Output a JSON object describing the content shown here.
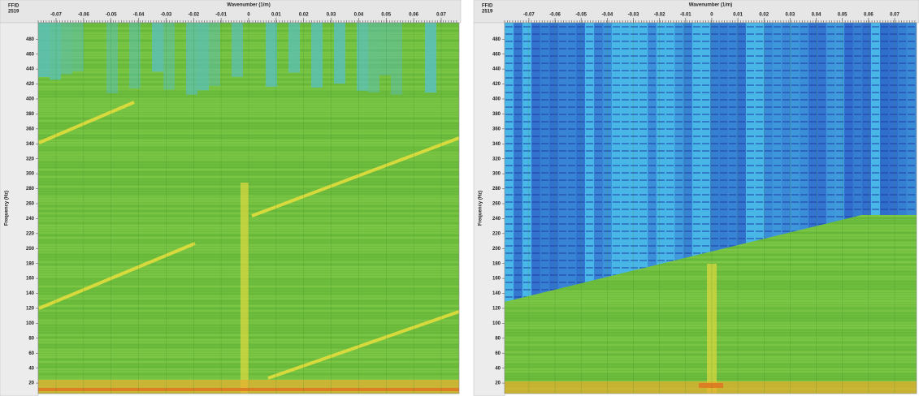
{
  "chart_data": [
    {
      "type": "heatmap",
      "header_label": "FFID",
      "header_value": 2519,
      "title": "Wavenumber (1/m)",
      "y_label": "Frequency (Hz)",
      "xlim": [
        -0.0765,
        0.0765
      ],
      "xticks": [
        -0.07,
        -0.06,
        -0.05,
        -0.04,
        -0.03,
        -0.02,
        -0.01,
        0,
        0.01,
        0.02,
        0.03,
        0.04,
        0.05,
        0.06,
        0.07
      ],
      "ylim": [
        6,
        502
      ],
      "yticks": [
        20,
        40,
        60,
        80,
        100,
        120,
        140,
        160,
        180,
        200,
        220,
        240,
        260,
        280,
        300,
        320,
        340,
        360,
        380,
        400,
        420,
        440,
        460,
        480
      ]
    },
    {
      "type": "heatmap",
      "header_label": "FFID",
      "header_value": 2519,
      "title": "Wavenumber (1/m)",
      "y_label": "Frequency (Hz)",
      "xlim": [
        -0.0793,
        0.0784
      ],
      "xticks": [
        -0.07,
        -0.06,
        -0.05,
        -0.04,
        -0.03,
        -0.02,
        -0.01,
        0,
        0.01,
        0.02,
        0.03,
        0.04,
        0.05,
        0.06,
        0.07
      ],
      "ylim": [
        6,
        502
      ],
      "yticks": [
        20,
        40,
        60,
        80,
        100,
        120,
        140,
        160,
        180,
        200,
        220,
        240,
        260,
        280,
        300,
        320,
        340,
        360,
        380,
        400,
        420,
        440,
        460,
        480
      ]
    }
  ]
}
